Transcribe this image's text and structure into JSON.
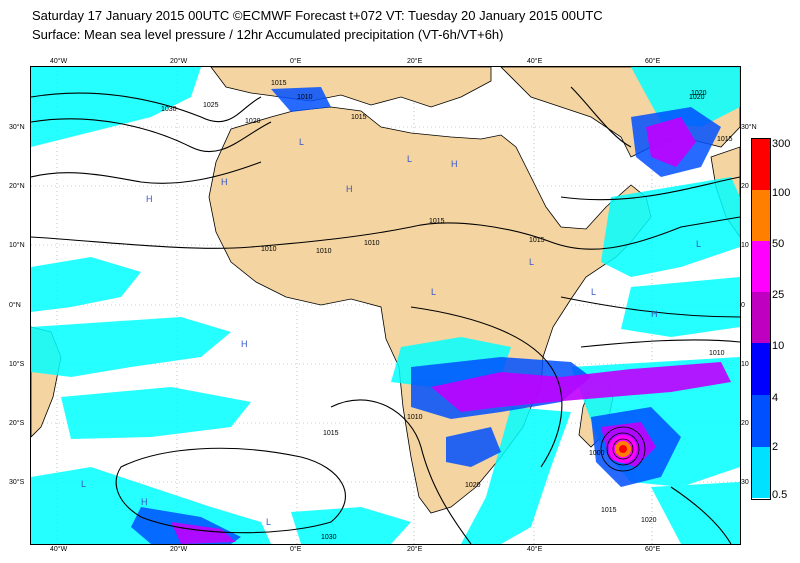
{
  "header": {
    "line1": "Saturday 17 January 2015 00UTC ©ECMWF Forecast t+072 VT: Tuesday 20 January 2015 00UTC",
    "line2": "Surface: Mean sea level pressure / 12hr Accumulated precipitation (VT-6h/VT+6h)"
  },
  "axes": {
    "lat_left": [
      "30°N",
      "20°N",
      "10°N",
      "0°N",
      "10°S",
      "20°S",
      "30°S"
    ],
    "lat_right": [
      "30°N",
      "20",
      "10",
      "0",
      "10",
      "20",
      "30"
    ],
    "lon_top": [
      "40°W",
      "20°W",
      "0°E",
      "20°E",
      "40°E",
      "60°E"
    ],
    "lon_bottom": [
      "40°W",
      "20°W",
      "0°E",
      "20°E",
      "40°E",
      "60°E"
    ]
  },
  "legend": {
    "values": [
      "300",
      "100",
      "50",
      "25",
      "10",
      "4",
      "2",
      "0.5"
    ],
    "colors": [
      "#ff0000",
      "#ff8000",
      "#ff00ff",
      "#c000c0",
      "#0000ff",
      "#0050ff",
      "#00e0ff"
    ]
  },
  "isobar_labels": [
    "1030",
    "1025",
    "1020",
    "1015",
    "1010",
    "1015",
    "1010",
    "1010",
    "1015",
    "1015",
    "1010",
    "1010",
    "1020",
    "1015",
    "1020",
    "1015",
    "1020",
    "1010",
    "1000",
    "1015",
    "1030",
    "1020"
  ],
  "pressure_centres": [
    "H",
    "H",
    "H",
    "H",
    "H",
    "H",
    "H",
    "L",
    "L",
    "L",
    "L",
    "L",
    "L",
    "L",
    "L"
  ],
  "colors": {
    "land": "#f4d4a0",
    "sea": "#ffffff",
    "precip_light": "#00ffff",
    "precip_mid": "#0000ff",
    "precip_heavy": "#c000ff",
    "isobar": "#000000"
  }
}
